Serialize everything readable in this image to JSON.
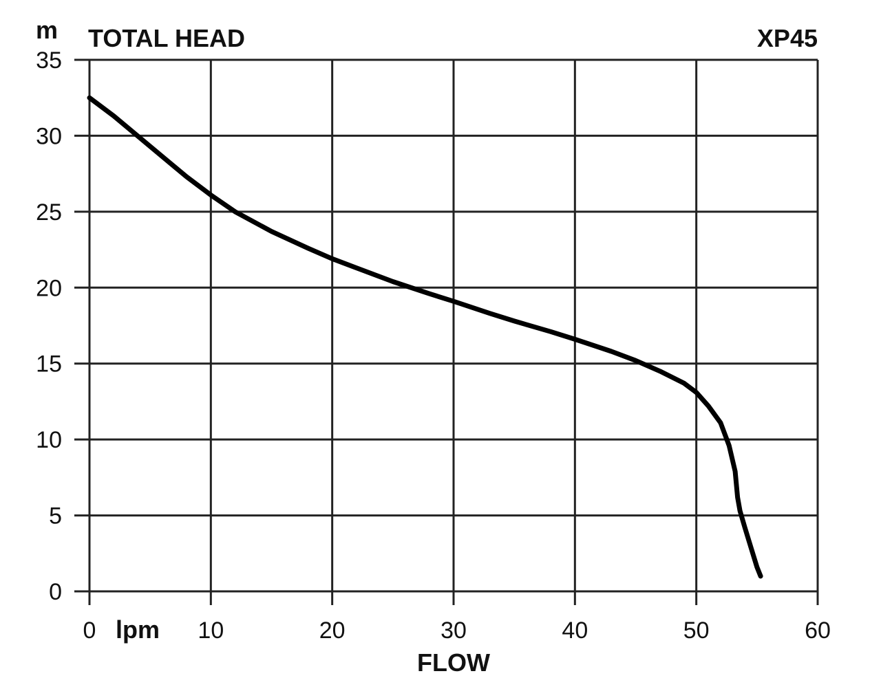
{
  "chart_data": {
    "type": "line",
    "title": "TOTAL HEAD",
    "model": "XP45",
    "y_unit": "m",
    "x_unit": "lpm",
    "xlabel": "FLOW",
    "ylabel": "TOTAL HEAD",
    "xlim": [
      0,
      60
    ],
    "ylim": [
      0,
      35
    ],
    "x_ticks": [
      0,
      10,
      20,
      30,
      40,
      50,
      60
    ],
    "y_ticks": [
      0,
      5,
      10,
      15,
      20,
      25,
      30,
      35
    ],
    "x_tick_labels": [
      "0",
      "10",
      "20",
      "30",
      "40",
      "50",
      "60"
    ],
    "y_tick_labels": [
      "0",
      "5",
      "10",
      "15",
      "20",
      "25",
      "30",
      "35"
    ],
    "grid": true,
    "series": [
      {
        "x": [
          0,
          2,
          5,
          8,
          10,
          12,
          15,
          18,
          20,
          22,
          25,
          28,
          30,
          33,
          35,
          38,
          40,
          43,
          45,
          47,
          49,
          50,
          51,
          52,
          52.7,
          53.2,
          53.4,
          53.6,
          54,
          54.5,
          55,
          55.3
        ],
        "y": [
          32.5,
          31.3,
          29.3,
          27.3,
          26.1,
          25.0,
          23.7,
          22.6,
          21.9,
          21.3,
          20.4,
          19.6,
          19.1,
          18.3,
          17.8,
          17.1,
          16.6,
          15.8,
          15.2,
          14.5,
          13.7,
          13.1,
          12.2,
          11.1,
          9.6,
          7.9,
          6.2,
          5.3,
          4.2,
          2.9,
          1.6,
          1.0
        ]
      }
    ]
  }
}
